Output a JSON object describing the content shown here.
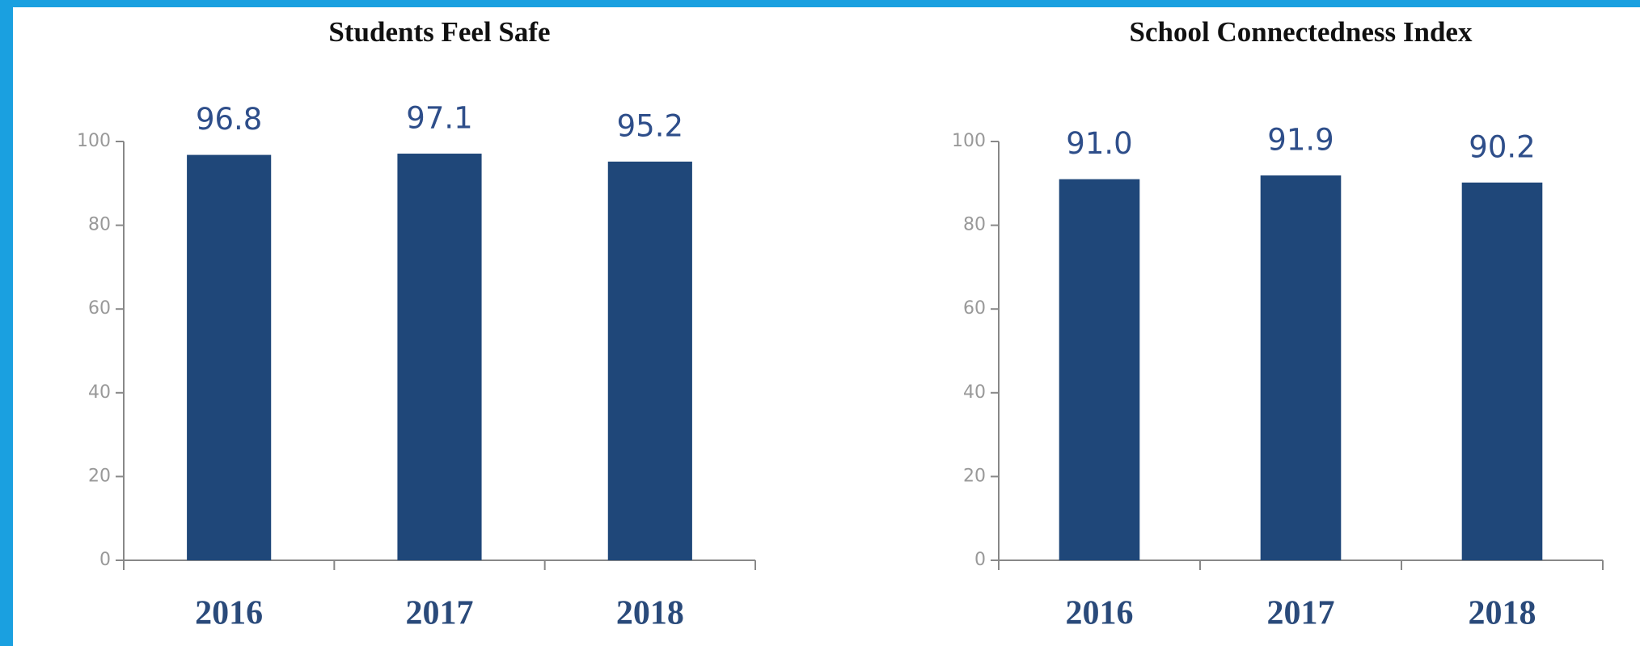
{
  "chart_data": [
    {
      "type": "bar",
      "title": "Students Feel Safe",
      "categories": [
        "2016",
        "2017",
        "2018"
      ],
      "values": [
        96.8,
        97.1,
        95.2
      ],
      "color": "#1f4779",
      "ylim": [
        0,
        100
      ],
      "yticks": [
        0,
        20,
        40,
        60,
        80,
        100
      ]
    },
    {
      "type": "bar",
      "title": "School Connectedness Index",
      "categories": [
        "2016",
        "2017",
        "2018"
      ],
      "values": [
        91.0,
        91.9,
        90.2
      ],
      "value_labels": [
        "91.0",
        "91.9",
        "90.2"
      ],
      "color": "#1f4779",
      "ylim": [
        0,
        100
      ],
      "yticks": [
        0,
        20,
        40,
        60,
        80,
        100
      ]
    }
  ]
}
